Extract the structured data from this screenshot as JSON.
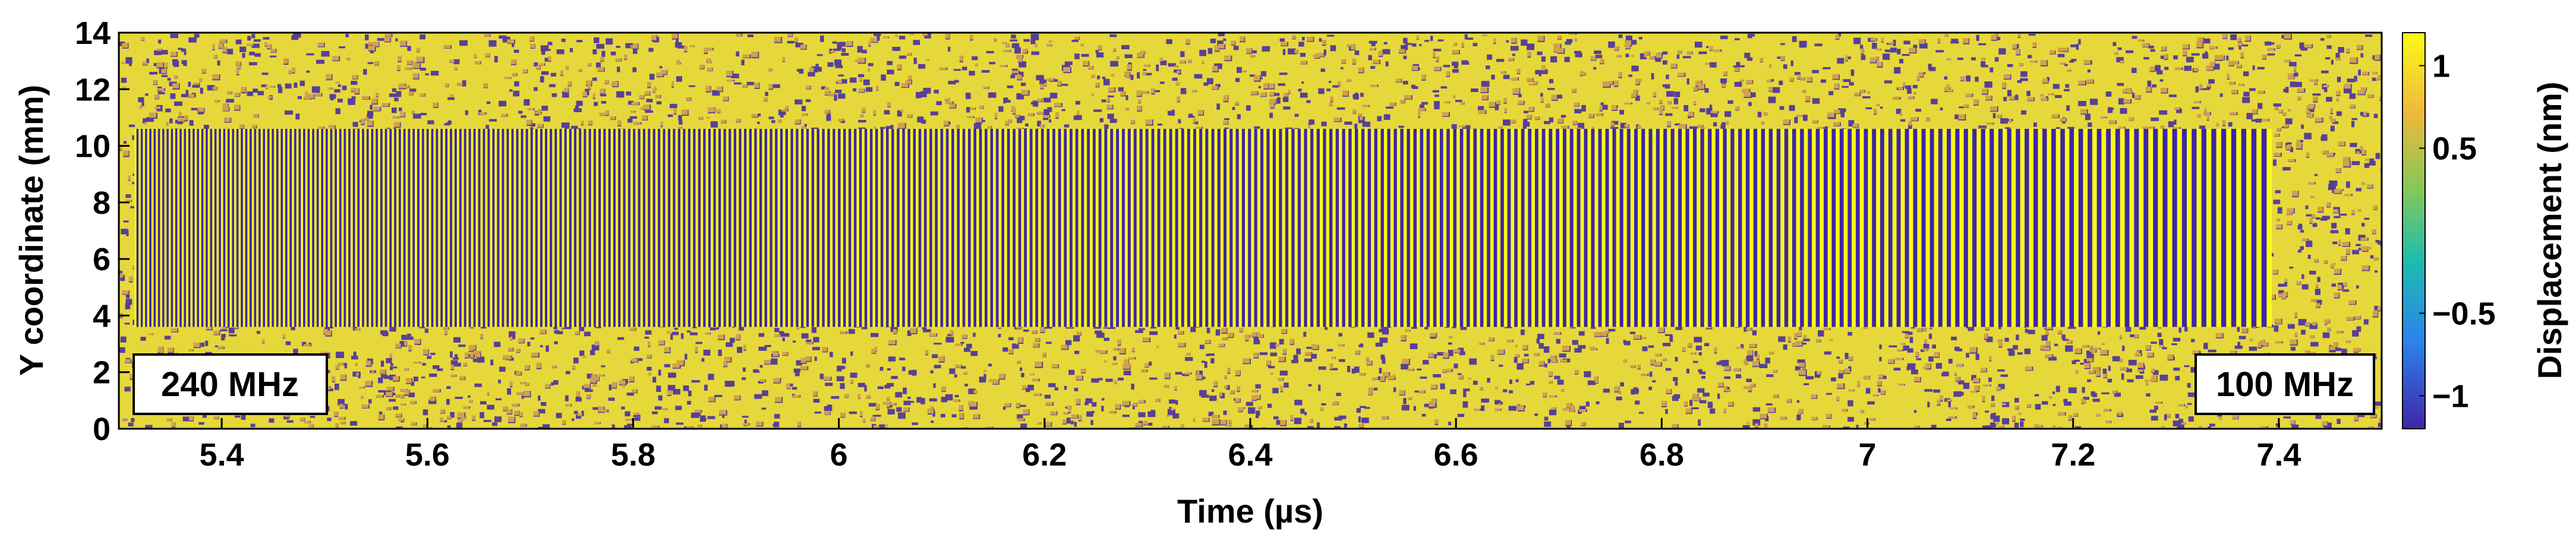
{
  "chart_data": {
    "type": "heatmap",
    "title": "",
    "xlabel": "Time (µs)",
    "ylabel": "Y coordinate (mm)",
    "xlim": [
      5.3,
      7.5
    ],
    "ylim": [
      0,
      14
    ],
    "x_ticks": [
      {
        "value": 5.4,
        "label": "5.4"
      },
      {
        "value": 5.6,
        "label": "5.6"
      },
      {
        "value": 5.8,
        "label": "5.8"
      },
      {
        "value": 6.0,
        "label": "6"
      },
      {
        "value": 6.2,
        "label": "6.2"
      },
      {
        "value": 6.4,
        "label": "6.4"
      },
      {
        "value": 6.6,
        "label": "6.6"
      },
      {
        "value": 6.8,
        "label": "6.8"
      },
      {
        "value": 7.0,
        "label": "7"
      },
      {
        "value": 7.2,
        "label": "7.2"
      },
      {
        "value": 7.4,
        "label": "7.4"
      }
    ],
    "y_ticks": [
      {
        "value": 0,
        "label": "0"
      },
      {
        "value": 2,
        "label": "2"
      },
      {
        "value": 4,
        "label": "4"
      },
      {
        "value": 6,
        "label": "6"
      },
      {
        "value": 8,
        "label": "8"
      },
      {
        "value": 10,
        "label": "10"
      },
      {
        "value": 12,
        "label": "12"
      },
      {
        "value": 14,
        "label": "14"
      }
    ],
    "colorbar": {
      "label": "Displacement (nm)",
      "range": [
        -1.2,
        1.2
      ],
      "ticks": [
        {
          "value": 1,
          "label": "1"
        },
        {
          "value": 0.5,
          "label": "0.5"
        },
        {
          "value": -0.5,
          "label": "−0.5"
        },
        {
          "value": -1,
          "label": "−1"
        }
      ],
      "colors": [
        "#3e26a8",
        "#2d82ec",
        "#1bbcb0",
        "#82c85a",
        "#f0b93b",
        "#f9fb15"
      ]
    },
    "chirp_band": {
      "y_range": [
        3.6,
        10.6
      ],
      "t_range": [
        5.315,
        7.39
      ],
      "start_frequency_label": "240 MHz",
      "end_frequency_label": "100 MHz",
      "start_frequency_mhz": 240,
      "end_frequency_mhz": 100
    },
    "annotations": [
      {
        "text": "240 MHz",
        "position": "bottom-left"
      },
      {
        "text": "100 MHz",
        "position": "bottom-right"
      }
    ],
    "grid": false
  }
}
